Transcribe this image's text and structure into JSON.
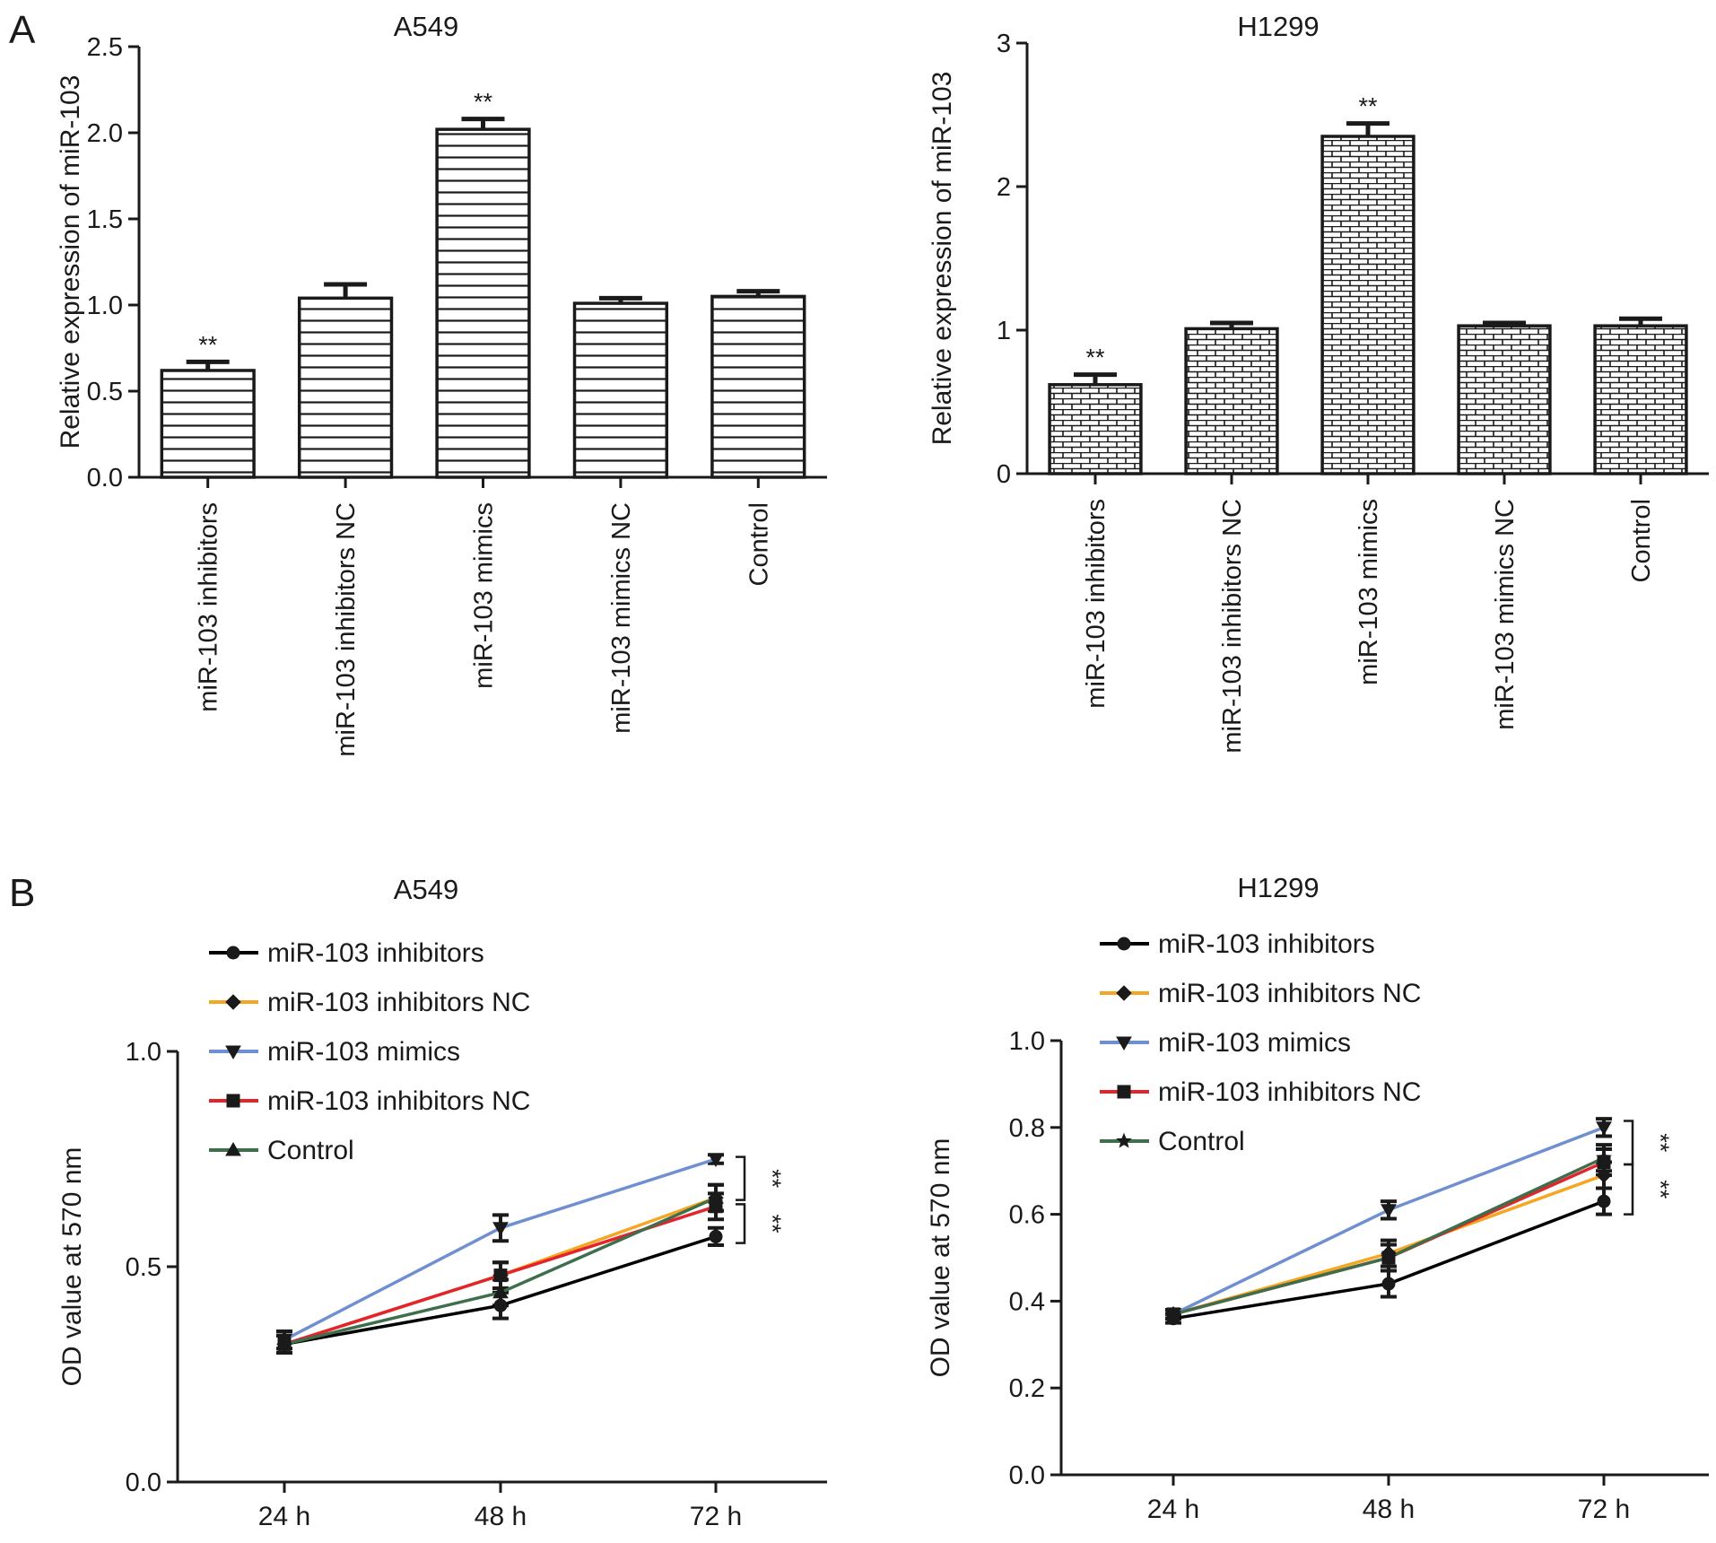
{
  "panel_labels": {
    "a": "A",
    "b": "B"
  },
  "series_colors": {
    "miR-103 inhibitors": "#000000",
    "miR-103 inhibitors NC": "#F5A623",
    "miR-103 mimics": "#6F8FD0",
    "miR-103 inhibitors NC (2)": "#E3242B",
    "Control": "#3E6E4C"
  },
  "chart_data": [
    {
      "id": "a549-bar",
      "type": "bar",
      "title": "A549",
      "ylabel": "Relative expression of miR-103",
      "xlabel": "",
      "ylim": [
        0,
        2.5
      ],
      "yticks": [
        "0.0",
        "0.5",
        "1.0",
        "1.5",
        "2.0",
        "2.5"
      ],
      "pattern": "horizontal-lines",
      "categories": [
        "miR-103 inhibitors",
        "miR-103 inhibitors NC",
        "miR-103 mimics",
        "miR-103 mimics NC",
        "Control"
      ],
      "values": [
        0.62,
        1.04,
        2.02,
        1.01,
        1.05
      ],
      "errors": [
        0.05,
        0.08,
        0.06,
        0.03,
        0.03
      ],
      "significance": [
        "**",
        "",
        "**",
        "",
        ""
      ]
    },
    {
      "id": "h1299-bar",
      "type": "bar",
      "title": "H1299",
      "ylabel": "Relative expression of miR-103",
      "xlabel": "",
      "ylim": [
        0,
        3
      ],
      "yticks": [
        "0",
        "1",
        "2",
        "3"
      ],
      "pattern": "brick",
      "categories": [
        "miR-103 inhibitors",
        "miR-103 inhibitors NC",
        "miR-103 mimics",
        "miR-103 mimics NC",
        "Control"
      ],
      "values": [
        0.62,
        1.01,
        2.35,
        1.03,
        1.03
      ],
      "errors": [
        0.07,
        0.04,
        0.09,
        0.02,
        0.05
      ],
      "significance": [
        "**",
        "",
        "**",
        "",
        ""
      ]
    },
    {
      "id": "a549-line",
      "type": "line",
      "title": "A549",
      "ylabel": "OD value at 570 nm",
      "xlabel": "",
      "ylim": [
        0,
        1.0
      ],
      "yticks": [
        "0.0",
        "0.5",
        "1.0"
      ],
      "categories": [
        "24 h",
        "48 h",
        "72 h"
      ],
      "legend": "top-left",
      "series": [
        {
          "name": "miR-103 inhibitors",
          "color": "#000000",
          "marker": "circle",
          "values": [
            0.32,
            0.41,
            0.57
          ],
          "errors": [
            0.02,
            0.03,
            0.02
          ]
        },
        {
          "name": "miR-103 inhibitors NC",
          "color": "#F5A623",
          "marker": "diamond",
          "values": [
            0.32,
            0.48,
            0.66
          ],
          "errors": [
            0.02,
            0.03,
            0.03
          ]
        },
        {
          "name": "miR-103 mimics",
          "color": "#6F8FD0",
          "marker": "triangle-down",
          "values": [
            0.33,
            0.59,
            0.75
          ],
          "errors": [
            0.02,
            0.03,
            0.01
          ]
        },
        {
          "name": "miR-103 inhibitors NC",
          "color": "#E3242B",
          "marker": "square",
          "values": [
            0.32,
            0.48,
            0.64
          ],
          "errors": [
            0.02,
            0.03,
            0.03
          ]
        },
        {
          "name": "Control",
          "color": "#3E6E4C",
          "marker": "triangle-up",
          "values": [
            0.32,
            0.44,
            0.66
          ],
          "errors": [
            0.02,
            0.03,
            0.03
          ]
        }
      ],
      "brackets": [
        {
          "from": 0.755,
          "to": 0.655,
          "label": "**"
        },
        {
          "from": 0.645,
          "to": 0.555,
          "label": "**"
        }
      ]
    },
    {
      "id": "h1299-line",
      "type": "line",
      "title": "H1299",
      "ylabel": "OD value at 570 nm",
      "xlabel": "",
      "ylim": [
        0,
        1.0
      ],
      "yticks": [
        "0.0",
        "0.2",
        "0.4",
        "0.6",
        "0.8",
        "1.0"
      ],
      "categories": [
        "24 h",
        "48 h",
        "72 h"
      ],
      "legend": "top-left",
      "series": [
        {
          "name": "miR-103 inhibitors",
          "color": "#000000",
          "marker": "circle",
          "values": [
            0.36,
            0.44,
            0.63
          ],
          "errors": [
            0.01,
            0.03,
            0.03
          ]
        },
        {
          "name": "miR-103 inhibitors NC",
          "color": "#F5A623",
          "marker": "diamond",
          "values": [
            0.37,
            0.51,
            0.69
          ],
          "errors": [
            0.01,
            0.03,
            0.03
          ]
        },
        {
          "name": "miR-103 mimics",
          "color": "#6F8FD0",
          "marker": "triangle-down",
          "values": [
            0.37,
            0.61,
            0.8
          ],
          "errors": [
            0.01,
            0.02,
            0.02
          ]
        },
        {
          "name": "miR-103 inhibitors NC",
          "color": "#E3242B",
          "marker": "square",
          "values": [
            0.37,
            0.5,
            0.72
          ],
          "errors": [
            0.01,
            0.03,
            0.03
          ]
        },
        {
          "name": "Control",
          "color": "#3E6E4C",
          "marker": "star",
          "values": [
            0.37,
            0.5,
            0.73
          ],
          "errors": [
            0.01,
            0.03,
            0.03
          ]
        }
      ],
      "brackets": [
        {
          "from": 0.815,
          "to": 0.715,
          "label": "**"
        },
        {
          "from": 0.715,
          "to": 0.6,
          "label": "**"
        }
      ]
    }
  ]
}
